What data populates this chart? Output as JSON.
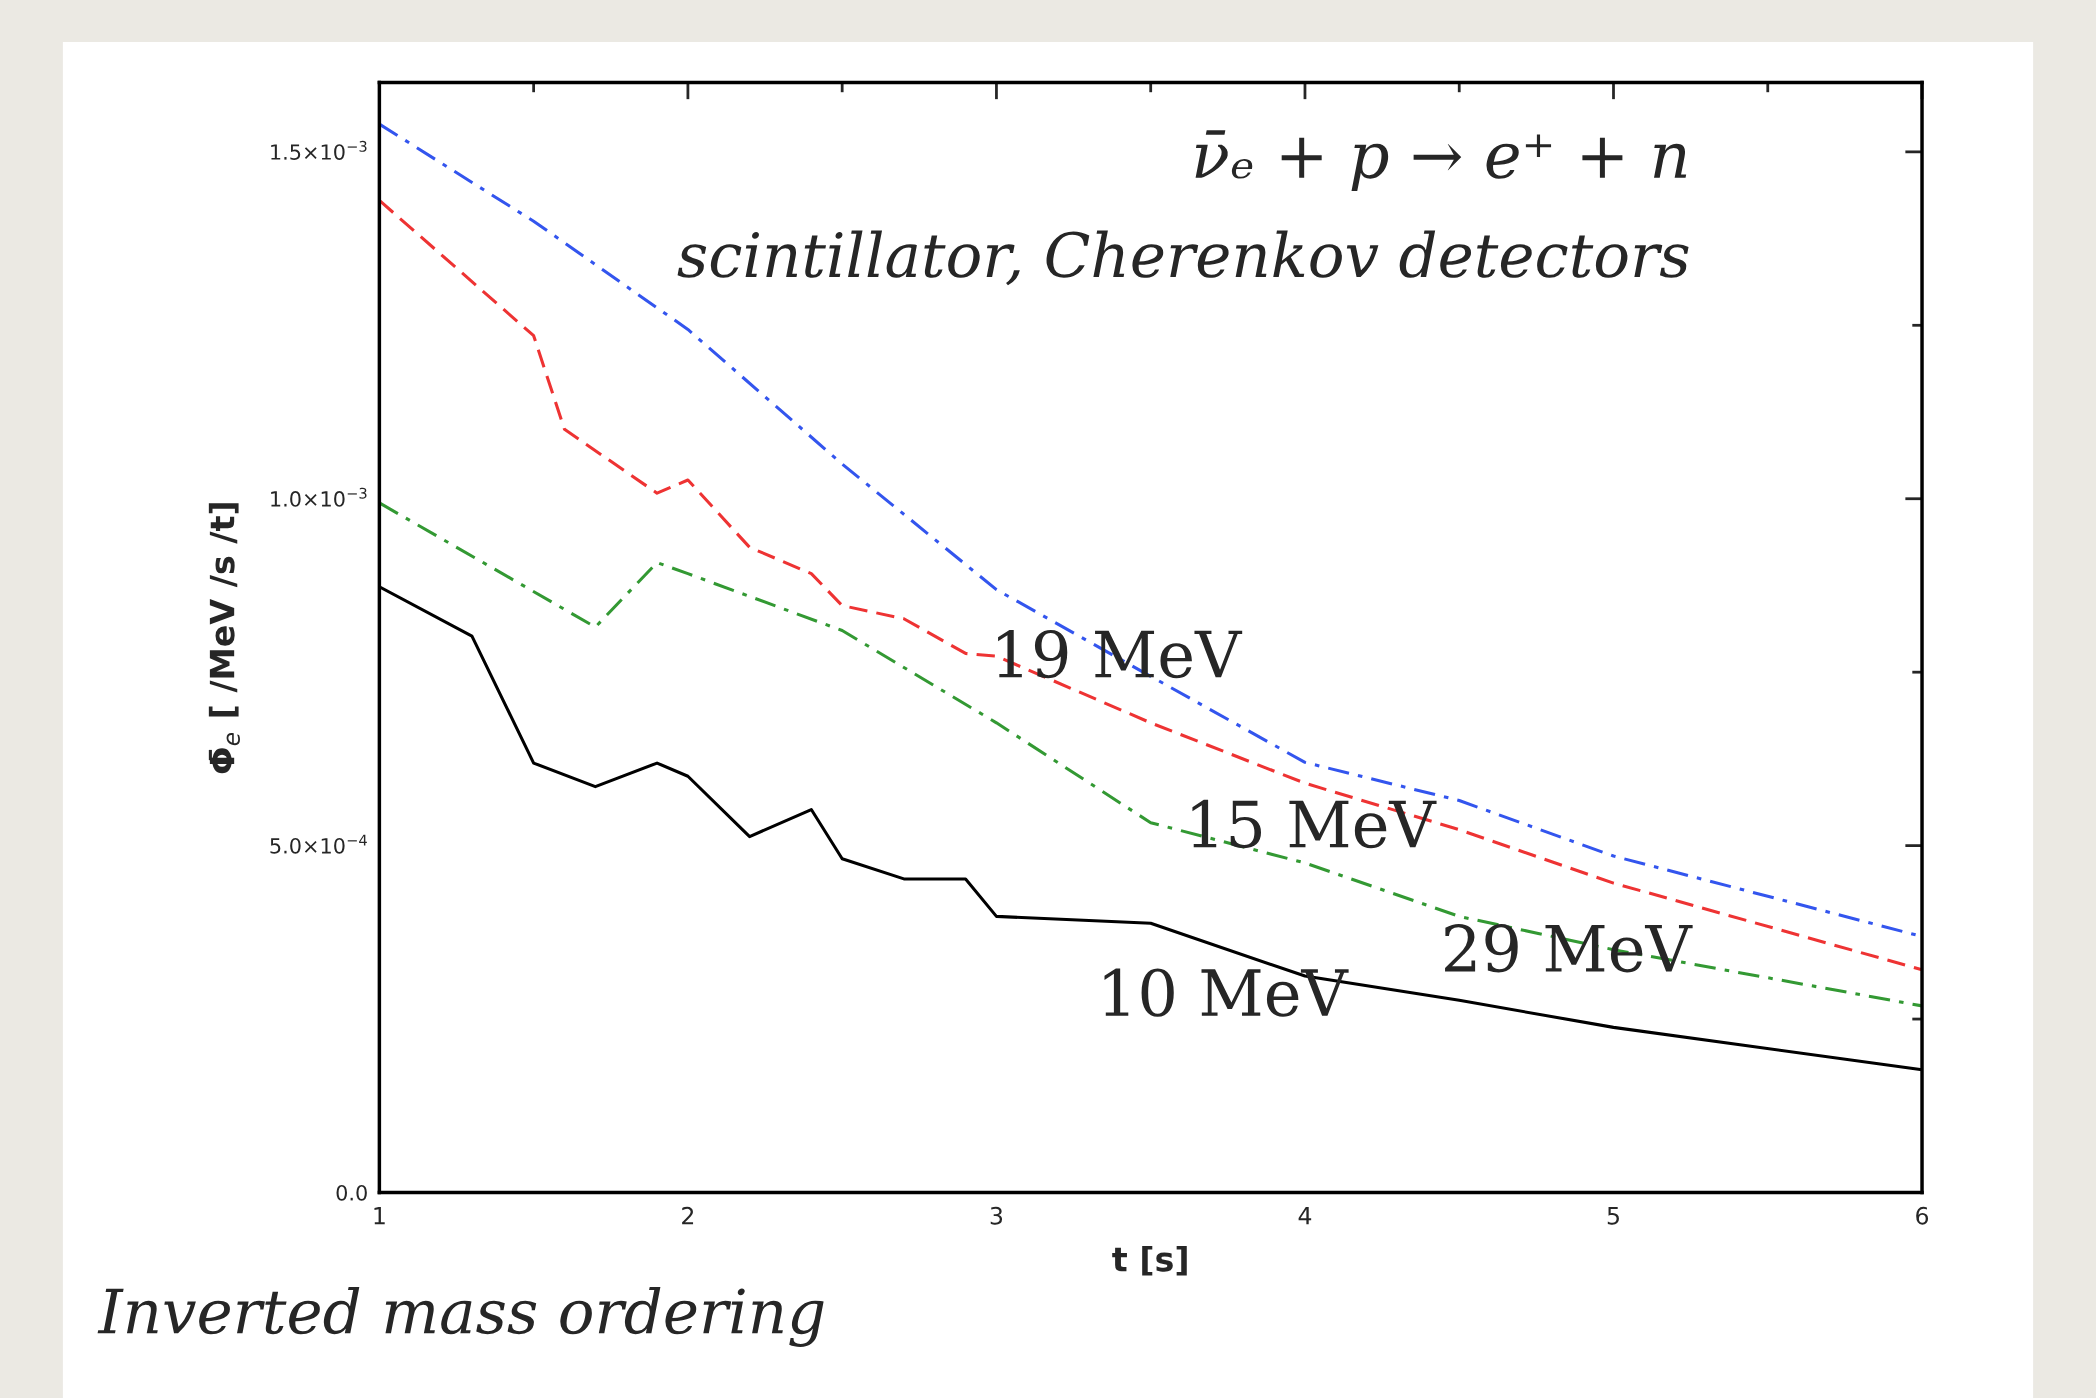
{
  "chart_data": {
    "type": "line",
    "xlabel": "t [s]",
    "ylabel": "Φ̄$_{e}$ [ /MeV /s /t]",
    "xlim": [
      1,
      6
    ],
    "ylim": [
      0,
      0.0016
    ],
    "xticks": [
      1,
      2,
      3,
      4,
      5,
      6
    ],
    "yticks": [
      {
        "value": 0,
        "label": "0.0"
      },
      {
        "value": 0.0005,
        "label": "5.0×10$^{−4}$"
      },
      {
        "value": 0.001,
        "label": "1.0×10$^{−3}$"
      },
      {
        "value": 0.0015,
        "label": "1.5×10$^{−3}$"
      }
    ],
    "grid": false,
    "legend": false,
    "series": [
      {
        "color": "#3355ee",
        "line_style": "dashdot",
        "x": [
          1,
          1.5,
          2,
          2.5,
          3,
          3.5,
          4,
          4.5,
          5,
          6
        ],
        "values": [
          0.00154,
          0.0014,
          0.001244,
          0.00105,
          0.000869,
          0.000744,
          0.00062,
          0.000565,
          0.000485,
          0.000369
        ]
      },
      {
        "color": "#ee3333",
        "line_style": "dashed",
        "x": [
          1,
          1.5,
          1.6,
          1.9,
          2,
          2.2,
          2.4,
          2.5,
          2.7,
          2.9,
          3,
          3.5,
          4,
          4.5,
          5,
          6
        ],
        "values": [
          0.00143,
          0.001235,
          0.0011,
          0.001008,
          0.001027,
          0.00093,
          0.000892,
          0.000846,
          0.000827,
          0.000777,
          0.000773,
          0.000677,
          0.00059,
          0.000523,
          0.000446,
          0.000321
        ]
      },
      {
        "color": "#339933",
        "line_style": "dashdot",
        "x": [
          1,
          1.7,
          1.9,
          2,
          2.5,
          3,
          3.5,
          4,
          4.5,
          5,
          6
        ],
        "values": [
          0.000994,
          0.000815,
          0.000908,
          0.000892,
          0.00081,
          0.000677,
          0.000533,
          0.000475,
          0.000398,
          0.00035,
          0.000269
        ]
      },
      {
        "color": "#000000",
        "line_style": "solid",
        "x": [
          1,
          1.3,
          1.5,
          1.7,
          1.9,
          2,
          2.2,
          2.4,
          2.5,
          2.7,
          2.9,
          3,
          3.5,
          4,
          4.5,
          5,
          6
        ],
        "values": [
          0.000873,
          0.000802,
          0.000619,
          0.000585,
          0.000619,
          0.0006,
          0.000513,
          0.000552,
          0.000481,
          0.000452,
          0.000452,
          0.000398,
          0.000388,
          0.000312,
          0.000277,
          0.000238,
          0.000177
        ]
      }
    ],
    "annotations": [
      "ν̄ₑ + p → e⁺ + n",
      "scintillator, Cherenkov detectors",
      "19 MeV",
      {
        "text": "15 MeV",
        "x": 3.61,
        "y": 0.000523
      },
      "29 MeV",
      "10 MeV",
      "Inverted mass ordering"
    ]
  }
}
